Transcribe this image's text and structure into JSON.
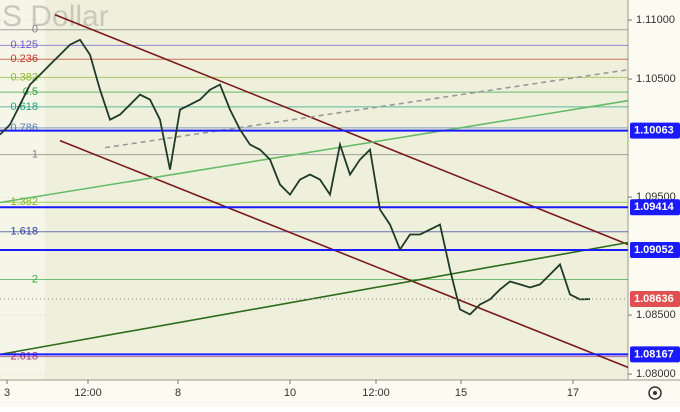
{
  "chart_data": {
    "type": "line",
    "watermark": "S Dollar",
    "xlim": [
      0,
      62.8
    ],
    "ylim": [
      1.0795,
      1.1117
    ],
    "xticks": [
      {
        "value": 0.7,
        "label": "3"
      },
      {
        "value": 8.8,
        "label": "12:00"
      },
      {
        "value": 17.8,
        "label": "8"
      },
      {
        "value": 29,
        "label": "10"
      },
      {
        "value": 37.6,
        "label": "12:00"
      },
      {
        "value": 46.1,
        "label": "15"
      },
      {
        "value": 57.3,
        "label": "17"
      }
    ],
    "yticks": [
      {
        "value": 1.11,
        "label": "1.11000"
      },
      {
        "value": 1.105,
        "label": "1.10500"
      },
      {
        "value": 1.095,
        "label": "1.09500"
      },
      {
        "value": 1.085,
        "label": "1.08500"
      },
      {
        "value": 1.08,
        "label": "1.08000"
      }
    ],
    "x": [
      0,
      1,
      2,
      3,
      4,
      5,
      6,
      7,
      8,
      9,
      10,
      11,
      12,
      13,
      14,
      15,
      16,
      17,
      18,
      19,
      20,
      21,
      22,
      23,
      24,
      25,
      26,
      27,
      28,
      29,
      30,
      31,
      32,
      33,
      34,
      35,
      36,
      37,
      38,
      39,
      40,
      41,
      42,
      43,
      44,
      45,
      46,
      47,
      48,
      49,
      50,
      51,
      52,
      53,
      54,
      55,
      56,
      57,
      58,
      59
    ],
    "series": [
      {
        "color": "#1f3a2a",
        "values": [
          1.10029,
          1.10114,
          1.10283,
          1.10453,
          1.10537,
          1.10622,
          1.10706,
          1.10791,
          1.10833,
          1.10706,
          1.1041,
          1.10156,
          1.10199,
          1.10283,
          1.10368,
          1.10326,
          1.10156,
          1.09733,
          1.10241,
          1.10283,
          1.10326,
          1.1041,
          1.10453,
          1.10241,
          1.10072,
          1.09945,
          1.09902,
          1.09818,
          1.09606,
          1.09521,
          1.09648,
          1.09691,
          1.09648,
          1.09521,
          1.09945,
          1.09691,
          1.09818,
          1.09902,
          1.09394,
          1.09267,
          1.09056,
          1.09183,
          1.09183,
          1.09225,
          1.09267,
          1.08886,
          1.08548,
          1.08506,
          1.0859,
          1.08633,
          1.08717,
          1.08785,
          1.0876,
          1.08734,
          1.0876,
          1.08844,
          1.08929,
          1.08675,
          1.08633,
          1.08636
        ]
      }
    ],
    "fib_levels": [
      {
        "label": "0",
        "price": 1.10918,
        "color": "#808080"
      },
      {
        "label": "0.125",
        "price": 1.10786,
        "color": "#6a5acd"
      },
      {
        "label": "0.236",
        "price": 1.10668,
        "color": "#c0392b"
      },
      {
        "label": "0.382",
        "price": 1.10514,
        "color": "#8cb82c"
      },
      {
        "label": "0.5",
        "price": 1.10389,
        "color": "#2e9e3e"
      },
      {
        "label": "0.618",
        "price": 1.10264,
        "color": "#20a080"
      },
      {
        "label": "0.786",
        "price": 1.10086,
        "color": "#5b7fb0"
      },
      {
        "label": "1",
        "price": 1.0986,
        "color": "#808080"
      },
      {
        "label": "1.382",
        "price": 1.09456,
        "color": "#8cb82c"
      },
      {
        "label": "1.618",
        "price": 1.09206,
        "color": "#2f3ea0"
      },
      {
        "label": "2",
        "price": 1.08802,
        "color": "#3aa84a"
      },
      {
        "label": "2.618",
        "price": 1.08148,
        "color": "#a0307a"
      }
    ],
    "trend_lines": [
      {
        "x": [
          5.5,
          62.8
        ],
        "y": [
          1.11045,
          1.09098
        ],
        "color": "#7b1a1a",
        "dash": false
      },
      {
        "x": [
          6,
          62.8
        ],
        "y": [
          1.09978,
          1.08057
        ],
        "color": "#7b1a1a",
        "dash": false
      },
      {
        "x": [
          0,
          62.8
        ],
        "y": [
          1.08167,
          1.09115
        ],
        "color": "#2e6b1e",
        "dash": false
      },
      {
        "x": [
          0,
          62.8
        ],
        "y": [
          1.09454,
          1.10317
        ],
        "color": "#66bb6a",
        "dash": false
      },
      {
        "x": [
          10.5,
          62.8
        ],
        "y": [
          1.09919,
          1.10579
        ],
        "color": "#999999",
        "dash": true
      }
    ],
    "price_lines": [
      {
        "value": 1.10063,
        "label": "1.10063"
      },
      {
        "value": 1.09414,
        "label": "1.09414"
      },
      {
        "value": 1.09052,
        "label": "1.09052"
      },
      {
        "value": 1.08167,
        "label": "1.08167"
      }
    ],
    "price_line_color": "#1a1aff",
    "last_price": {
      "value": 1.08636,
      "label": "1.08636"
    },
    "last_price_color": "#e05050"
  }
}
